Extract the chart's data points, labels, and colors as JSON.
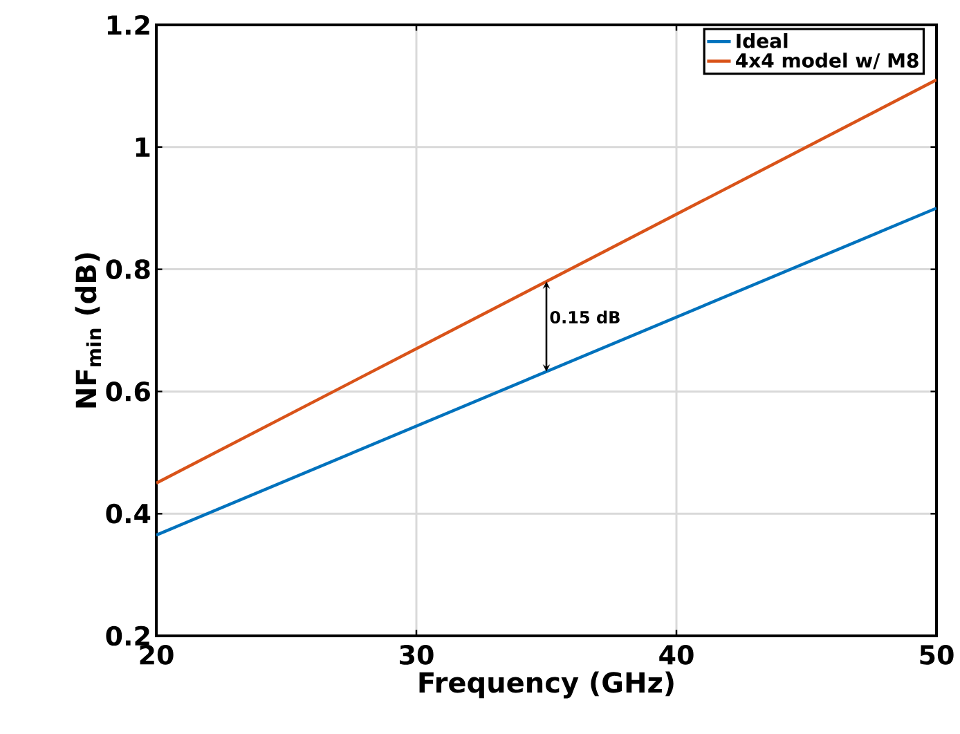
{
  "chart_data": {
    "type": "line",
    "xlabel": "Frequency (GHz)",
    "ylabel": "NF$_{min}$ (dB)",
    "x": [
      20,
      50
    ],
    "series": [
      {
        "name": "Ideal",
        "color": "#0072bd",
        "values": [
          0.365,
          0.9
        ]
      },
      {
        "name": "4x4 model w/ M8",
        "color": "#d95319",
        "values": [
          0.45,
          1.11
        ]
      }
    ],
    "xlim": [
      20,
      50
    ],
    "ylim": [
      0.2,
      1.2
    ],
    "xticks": [
      20,
      30,
      40,
      50
    ],
    "yticks": [
      0.2,
      0.4,
      0.6,
      0.8,
      1,
      1.2
    ],
    "grid": true,
    "legend": "top right",
    "marker": "none",
    "line_style": "solid",
    "annotations": [
      "0.15 dB"
    ]
  }
}
